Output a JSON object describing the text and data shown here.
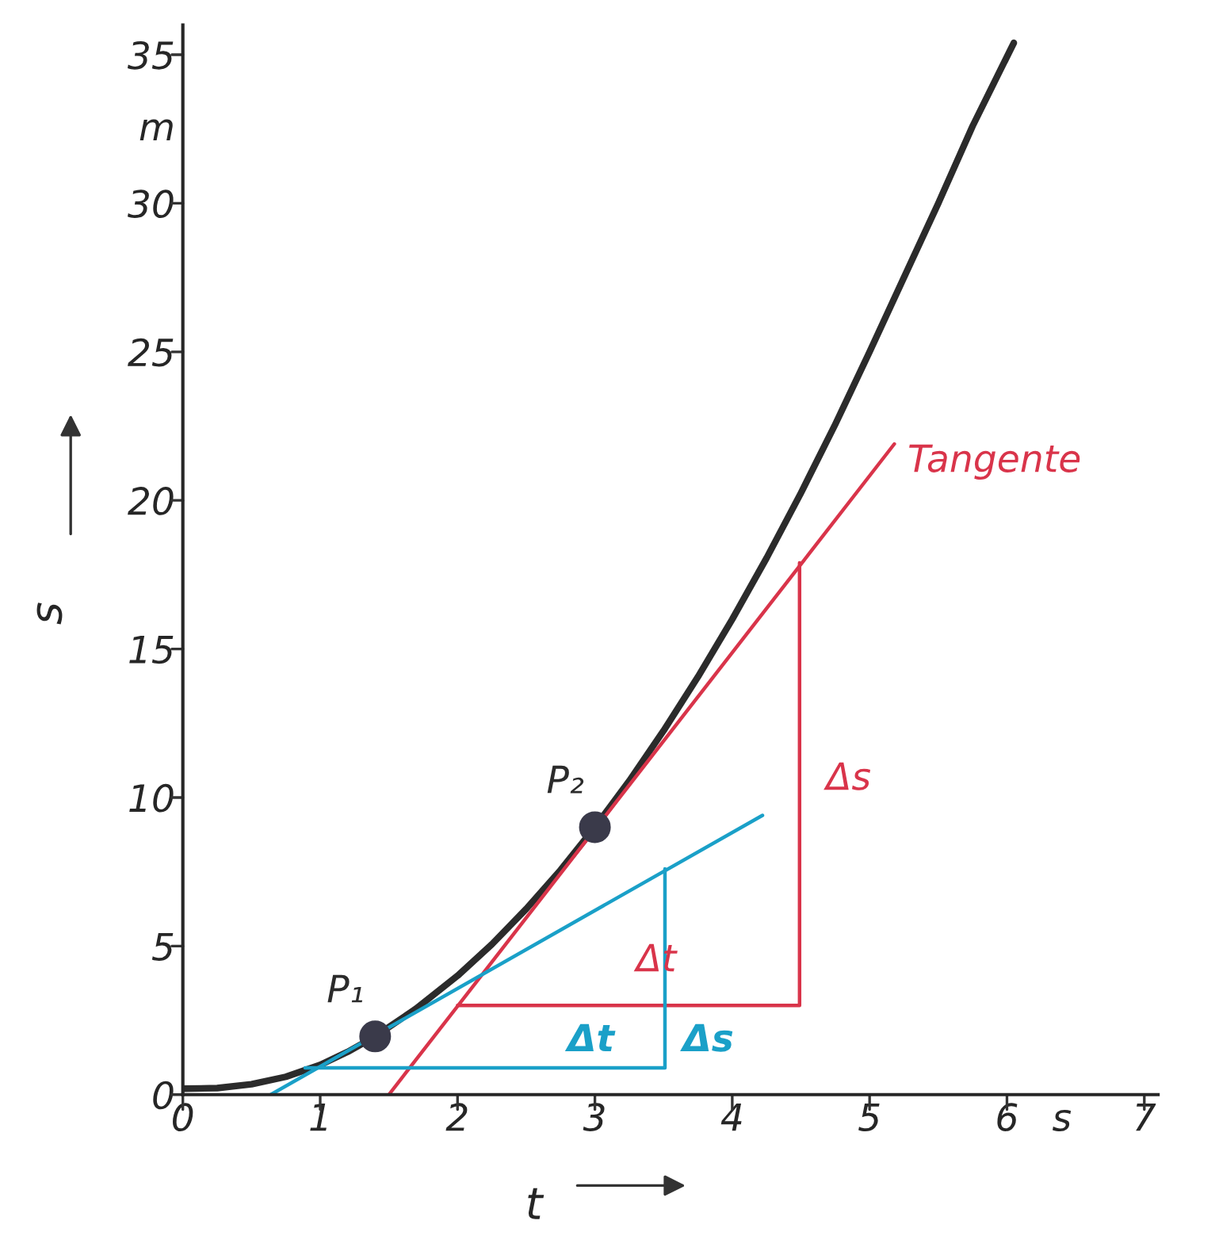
{
  "chart_data": {
    "type": "line",
    "xlabel": "t",
    "ylabel": "s",
    "xlim": [
      0,
      7.1
    ],
    "ylim": [
      0,
      36
    ],
    "xticks": [
      0,
      1,
      2,
      3,
      4,
      5,
      6,
      {
        "value": 6.4,
        "label": "s"
      },
      7
    ],
    "yticks": [
      0,
      5,
      10,
      15,
      20,
      25,
      30,
      {
        "value": 32.6,
        "label": "m"
      },
      35
    ],
    "grid": false,
    "legend": false,
    "series": [
      {
        "color": "#2b2b2b",
        "x": [
          0,
          0.25,
          0.5,
          0.75,
          1,
          1.2,
          1.4,
          1.7,
          2,
          2.25,
          2.5,
          2.75,
          3,
          3.25,
          3.5,
          3.75,
          4,
          4.25,
          4.5,
          4.75,
          5,
          5.25,
          5.5,
          5.75,
          6.05
        ],
        "values": [
          0.2,
          0.22,
          0.35,
          0.6,
          1.0,
          1.44,
          1.96,
          2.9,
          4.0,
          5.06,
          6.25,
          7.56,
          9.0,
          10.56,
          12.25,
          14.06,
          16.0,
          18.06,
          20.25,
          22.56,
          25.0,
          27.5,
          30.0,
          32.6,
          35.4
        ]
      },
      {
        "color": "#d9344a",
        "x": [
          1.5,
          5.18
        ],
        "values": [
          0,
          21.9
        ]
      },
      {
        "color": "#d9344a",
        "x": [
          2.0,
          4.49,
          4.49
        ],
        "values": [
          3.0,
          3.0,
          17.9
        ]
      },
      {
        "color": "#1aa0c8",
        "x": [
          0.64,
          4.22
        ],
        "values": [
          0,
          9.4
        ]
      },
      {
        "color": "#1aa0c8",
        "x": [
          0.89,
          3.51,
          3.51
        ],
        "values": [
          0.9,
          0.9,
          7.6
        ]
      },
      {
        "type": "scatter",
        "color": "#3a3a4a",
        "x": [
          1.4,
          3.0
        ],
        "values": [
          1.96,
          9.0
        ]
      }
    ],
    "annotations": [
      {
        "text": "P₁",
        "x": 1.4,
        "y": 1.96
      },
      {
        "text": "P₂",
        "x": 3.0,
        "y": 9.0
      },
      {
        "text": "Tangente",
        "x": 5.18,
        "y": 21.9
      },
      {
        "text": "Δt",
        "x": 3.3,
        "y": 3.0
      },
      {
        "text": "Δs",
        "x": 4.49,
        "y": 10.0
      },
      {
        "text": "Δt",
        "x": 2.8,
        "y": 0.9
      },
      {
        "text": "Δs",
        "x": 3.51,
        "y": 0.9
      }
    ]
  }
}
